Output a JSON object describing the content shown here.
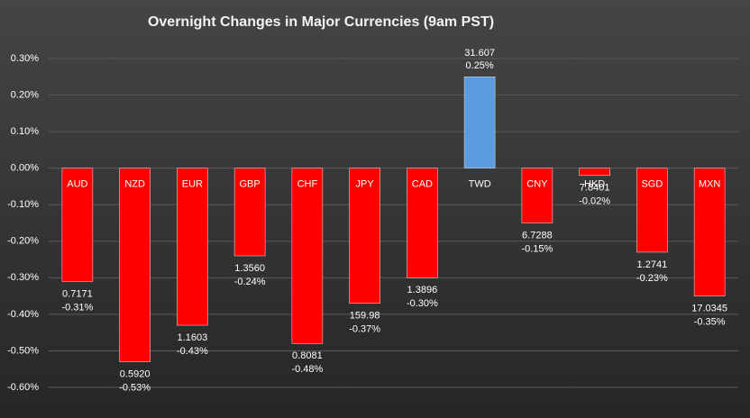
{
  "chart_data": {
    "type": "bar",
    "title": "Overnight Changes in Major Currencies (9am PST)",
    "categories": [
      "AUD",
      "NZD",
      "EUR",
      "GBP",
      "CHF",
      "JPY",
      "CAD",
      "TWD",
      "CNY",
      "HKD",
      "SGD",
      "MXN"
    ],
    "values": [
      -0.31,
      -0.53,
      -0.43,
      -0.24,
      -0.48,
      -0.37,
      -0.3,
      0.25,
      -0.15,
      -0.02,
      -0.23,
      -0.35
    ],
    "value_labels": [
      "-0.31%",
      "-0.53%",
      "-0.43%",
      "-0.24%",
      "-0.48%",
      "-0.37%",
      "-0.30%",
      "0.25%",
      "-0.15%",
      "-0.02%",
      "-0.23%",
      "-0.35%"
    ],
    "rates": [
      "0.7171",
      "0.5920",
      "1.1603",
      "1.3560",
      "0.8081",
      "159.98",
      "1.3896",
      "31.607",
      "6.7288",
      "7.8401",
      "1.2741",
      "17.0345"
    ],
    "colors": [
      "#ff0000",
      "#ff0000",
      "#ff0000",
      "#ff0000",
      "#ff0000",
      "#ff0000",
      "#ff0000",
      "#5b9be0",
      "#ff0000",
      "#ff0000",
      "#ff0000",
      "#ff0000"
    ],
    "ylim": [
      -0.6,
      0.3
    ],
    "yticks": [
      {
        "value": -0.6,
        "label": "-0.60%"
      },
      {
        "value": -0.5,
        "label": "-0.50%"
      },
      {
        "value": -0.4,
        "label": "-0.40%"
      },
      {
        "value": -0.3,
        "label": "-0.30%"
      },
      {
        "value": -0.2,
        "label": "-0.20%"
      },
      {
        "value": -0.1,
        "label": "-0.10%"
      },
      {
        "value": 0,
        "label": "0.00%"
      },
      {
        "value": 0.1,
        "label": "0.10%"
      },
      {
        "value": 0.2,
        "label": "0.20%"
      },
      {
        "value": 0.3,
        "label": "0.30%"
      }
    ],
    "grid": true
  }
}
